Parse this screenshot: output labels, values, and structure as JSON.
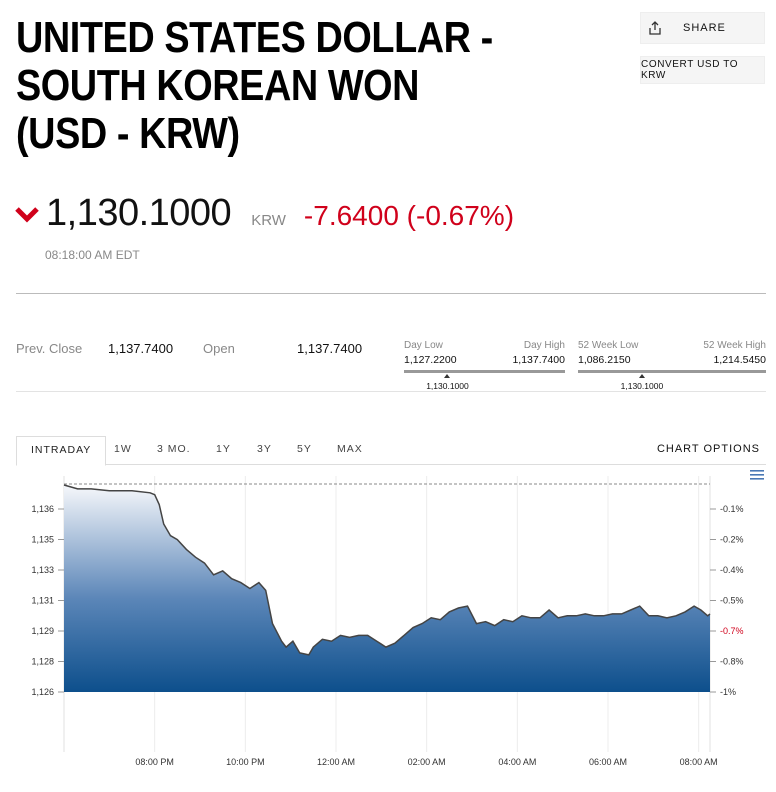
{
  "title": {
    "lines": [
      "UNITED STATES DOLLAR -",
      "SOUTH KOREAN WON",
      "(USD - KRW)"
    ]
  },
  "actions": {
    "share_label": "SHARE",
    "convert_label": "CONVERT USD TO KRW"
  },
  "quote": {
    "price": "1,130.1000",
    "currency": "KRW",
    "change": "-7.6400 (-0.67%)",
    "timestamp": "08:18:00 AM EDT",
    "direction_icon": "down-chevron-icon",
    "down_color": "#d0011b"
  },
  "stats": {
    "prev_close_label": "Prev. Close",
    "prev_close_value": "1,137.7400",
    "open_label": "Open",
    "open_value": "1,137.7400",
    "day_range": {
      "low_label": "Day Low",
      "high_label": "Day High",
      "low_value": "1,127.2200",
      "high_value": "1,137.7400",
      "current": "1,130.1000",
      "current_position": 0.27
    },
    "week52_range": {
      "low_label": "52 Week Low",
      "high_label": "52 Week High",
      "low_value": "1,086.2150",
      "high_value": "1,214.5450",
      "current": "1,130.1000",
      "current_position": 0.34
    }
  },
  "tabs": [
    "INTRADAY",
    "1W",
    "3 MO.",
    "1Y",
    "3Y",
    "5Y",
    "MAX"
  ],
  "active_tab": "INTRADAY",
  "chart_options_label": "CHART OPTIONS",
  "chart_data": {
    "type": "area",
    "y_left_ticks": [
      "1,136",
      "1,135",
      "1,133",
      "1,131",
      "1,129",
      "1,128",
      "1,126"
    ],
    "y_right_ticks": [
      "-0.1%",
      "-0.2%",
      "-0.4%",
      "-0.5%",
      "-0.7%",
      "-0.8%",
      "-1%"
    ],
    "highlight_right_tick": "-0.7%",
    "x_ticks": [
      "08:00 PM",
      "10:00 PM",
      "12:00 AM",
      "02:00 AM",
      "04:00 AM",
      "06:00 AM",
      "08:00 AM"
    ],
    "ylim": [
      1126.0,
      1136.7
    ],
    "x_range_hours": [
      18.0,
      32.25
    ],
    "x_tick_hours": [
      20,
      22,
      24,
      26,
      28,
      30,
      32
    ],
    "previous_close": 1137.74,
    "series": [
      {
        "x": [
          18.0,
          18.3,
          18.6,
          19.0,
          19.5,
          19.9,
          20.0,
          20.1,
          20.2,
          20.35,
          20.5,
          20.7,
          20.9,
          21.1,
          21.3,
          21.5,
          21.7,
          21.9,
          22.1,
          22.3,
          22.45,
          22.6,
          22.8,
          22.9,
          23.05,
          23.2,
          23.4,
          23.5,
          23.7,
          23.9,
          24.1,
          24.3,
          24.5,
          24.7,
          24.9,
          25.1,
          25.3,
          25.5,
          25.7,
          25.9,
          26.1,
          26.3,
          26.5,
          26.7,
          26.9,
          27.1,
          27.3,
          27.5,
          27.7,
          27.9,
          28.1,
          28.3,
          28.5,
          28.7,
          28.9,
          29.1,
          29.3,
          29.5,
          29.7,
          29.9,
          30.1,
          30.3,
          30.5,
          30.7,
          30.9,
          31.1,
          31.3,
          31.5,
          31.7,
          31.9,
          32.05,
          32.2,
          32.25
        ],
        "y": [
          1136.6,
          1136.4,
          1136.4,
          1136.3,
          1136.3,
          1136.2,
          1136.1,
          1135.6,
          1134.6,
          1134.0,
          1133.8,
          1133.3,
          1132.9,
          1132.6,
          1132.0,
          1132.2,
          1131.8,
          1131.6,
          1131.3,
          1131.6,
          1131.2,
          1129.5,
          1128.6,
          1128.3,
          1128.6,
          1128.0,
          1127.9,
          1128.3,
          1128.7,
          1128.6,
          1128.9,
          1128.8,
          1128.9,
          1128.9,
          1128.6,
          1128.3,
          1128.5,
          1128.9,
          1129.3,
          1129.5,
          1129.8,
          1129.7,
          1130.1,
          1130.3,
          1130.4,
          1129.5,
          1129.6,
          1129.4,
          1129.7,
          1129.6,
          1129.9,
          1129.8,
          1129.8,
          1130.2,
          1129.8,
          1129.9,
          1129.9,
          1130.0,
          1129.9,
          1129.9,
          1130.0,
          1130.0,
          1130.2,
          1130.4,
          1129.9,
          1129.9,
          1129.8,
          1129.9,
          1130.1,
          1130.4,
          1130.2,
          1129.9,
          1130.0
        ]
      }
    ]
  }
}
